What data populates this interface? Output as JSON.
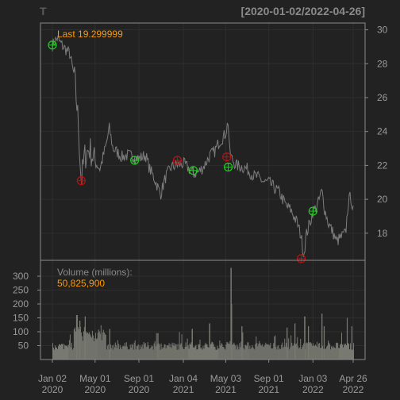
{
  "header": {
    "symbol": "T",
    "range": "[2020-01-02/2022-04-26]"
  },
  "colors": {
    "background": "#222222",
    "panel_border": "#8a8a8a",
    "grid": "#2e2e2e",
    "axis_text": "#9a9a9a",
    "price_line": "#7d7d7d",
    "volume_bar": "#787a72",
    "accent": "#ff9900",
    "buy_marker": "#22cc22",
    "sell_marker": "#bb1111"
  },
  "chart_data": [
    {
      "type": "line",
      "panel": "price",
      "legend_label": "Last 19.299999",
      "ylim": [
        16.4,
        30.4
      ],
      "y_ticks": [
        18,
        20,
        22,
        24,
        26,
        28,
        30
      ],
      "axis_side": "right",
      "grid": true,
      "x_range": [
        "2020-01-02",
        "2022-04-26"
      ],
      "x_ticks": [
        {
          "date": "2020-01-02",
          "month": "Jan 02",
          "year": "2020"
        },
        {
          "date": "2020-05-01",
          "month": "May 01",
          "year": "2020"
        },
        {
          "date": "2020-09-01",
          "month": "Sep 01",
          "year": "2020"
        },
        {
          "date": "2021-01-04",
          "month": "Jan 04",
          "year": "2021"
        },
        {
          "date": "2021-05-03",
          "month": "May 03",
          "year": "2021"
        },
        {
          "date": "2021-09-01",
          "month": "Sep 01",
          "year": "2021"
        },
        {
          "date": "2022-01-03",
          "month": "Jan 03",
          "year": "2022"
        },
        {
          "date": "2022-04-26",
          "month": "Apr 26",
          "year": "2022"
        }
      ],
      "series": [
        {
          "points": [
            [
              "2020-01-02",
              29.1
            ],
            [
              "2020-01-15",
              29.5
            ],
            [
              "2020-02-01",
              29.0
            ],
            [
              "2020-02-20",
              28.6
            ],
            [
              "2020-03-05",
              27.0
            ],
            [
              "2020-03-15",
              24.5
            ],
            [
              "2020-03-23",
              21.0
            ],
            [
              "2020-04-01",
              22.5
            ],
            [
              "2020-04-15",
              23.0
            ],
            [
              "2020-05-01",
              22.2
            ],
            [
              "2020-05-15",
              21.8
            ],
            [
              "2020-06-01",
              23.2
            ],
            [
              "2020-06-10",
              24.2
            ],
            [
              "2020-06-20",
              23.0
            ],
            [
              "2020-07-01",
              22.8
            ],
            [
              "2020-07-15",
              22.5
            ],
            [
              "2020-08-01",
              22.6
            ],
            [
              "2020-08-20",
              22.5
            ],
            [
              "2020-09-01",
              22.4
            ],
            [
              "2020-09-20",
              22.6
            ],
            [
              "2020-10-01",
              21.8
            ],
            [
              "2020-10-15",
              21.2
            ],
            [
              "2020-11-01",
              20.3
            ],
            [
              "2020-11-15",
              21.3
            ],
            [
              "2020-12-01",
              21.9
            ],
            [
              "2020-12-15",
              22.0
            ],
            [
              "2021-01-04",
              22.1
            ],
            [
              "2021-01-20",
              21.8
            ],
            [
              "2021-02-01",
              21.5
            ],
            [
              "2021-02-15",
              21.6
            ],
            [
              "2021-03-01",
              21.9
            ],
            [
              "2021-03-20",
              22.6
            ],
            [
              "2021-04-01",
              22.8
            ],
            [
              "2021-04-15",
              23.4
            ],
            [
              "2021-05-01",
              23.8
            ],
            [
              "2021-05-10",
              24.6
            ],
            [
              "2021-05-14",
              22.8
            ],
            [
              "2021-05-20",
              22.4
            ],
            [
              "2021-06-01",
              22.0
            ],
            [
              "2021-06-20",
              21.9
            ],
            [
              "2021-07-01",
              21.8
            ],
            [
              "2021-07-20",
              21.4
            ],
            [
              "2021-08-01",
              21.3
            ],
            [
              "2021-08-20",
              21.0
            ],
            [
              "2021-09-01",
              21.0
            ],
            [
              "2021-09-20",
              20.6
            ],
            [
              "2021-10-01",
              20.4
            ],
            [
              "2021-10-20",
              19.6
            ],
            [
              "2021-11-01",
              19.4
            ],
            [
              "2021-11-20",
              18.6
            ],
            [
              "2021-12-01",
              17.8
            ],
            [
              "2021-12-08",
              16.7
            ],
            [
              "2021-12-15",
              17.9
            ],
            [
              "2021-12-28",
              18.8
            ],
            [
              "2022-01-03",
              19.3
            ],
            [
              "2022-01-15",
              19.6
            ],
            [
              "2022-01-28",
              20.5
            ],
            [
              "2022-02-05",
              19.4
            ],
            [
              "2022-02-15",
              18.6
            ],
            [
              "2022-03-01",
              18.0
            ],
            [
              "2022-03-10",
              17.5
            ],
            [
              "2022-03-25",
              17.8
            ],
            [
              "2022-04-05",
              18.0
            ],
            [
              "2022-04-12",
              19.8
            ],
            [
              "2022-04-19",
              20.2
            ],
            [
              "2022-04-26",
              19.3
            ]
          ]
        }
      ],
      "markers": [
        {
          "kind": "buy",
          "date": "2020-01-02",
          "y": 29.1
        },
        {
          "kind": "sell",
          "date": "2020-03-23",
          "y": 21.1
        },
        {
          "kind": "buy",
          "date": "2020-08-20",
          "y": 22.3
        },
        {
          "kind": "sell",
          "date": "2020-12-18",
          "y": 22.3
        },
        {
          "kind": "buy",
          "date": "2021-02-01",
          "y": 21.7
        },
        {
          "kind": "sell",
          "date": "2021-05-06",
          "y": 22.5
        },
        {
          "kind": "buy",
          "date": "2021-05-10",
          "y": 21.9
        },
        {
          "kind": "sell",
          "date": "2021-12-01",
          "y": 16.5
        },
        {
          "kind": "buy",
          "date": "2022-01-03",
          "y": 19.3
        }
      ]
    },
    {
      "type": "bar",
      "panel": "volume",
      "title": "Volume (millions):",
      "last_value": "50,825,900",
      "ylim": [
        0,
        340
      ],
      "y_ticks": [
        50,
        100,
        150,
        200,
        250,
        300
      ],
      "axis_side": "left",
      "baseline": 35,
      "spikes": [
        [
          "2020-03-10",
          160
        ],
        [
          "2020-03-18",
          140
        ],
        [
          "2020-04-02",
          155
        ],
        [
          "2020-06-10",
          110
        ],
        [
          "2020-10-23",
          95
        ],
        [
          "2021-01-28",
          110
        ],
        [
          "2021-03-18",
          130
        ],
        [
          "2021-05-17",
          330
        ],
        [
          "2021-05-18",
          200
        ],
        [
          "2021-06-16",
          120
        ],
        [
          "2021-10-21",
          115
        ],
        [
          "2021-11-12",
          130
        ],
        [
          "2021-12-10",
          155
        ],
        [
          "2021-12-20",
          120
        ],
        [
          "2022-01-27",
          165
        ],
        [
          "2022-02-02",
          120
        ],
        [
          "2022-04-08",
          150
        ],
        [
          "2022-04-21",
          120
        ]
      ]
    }
  ]
}
